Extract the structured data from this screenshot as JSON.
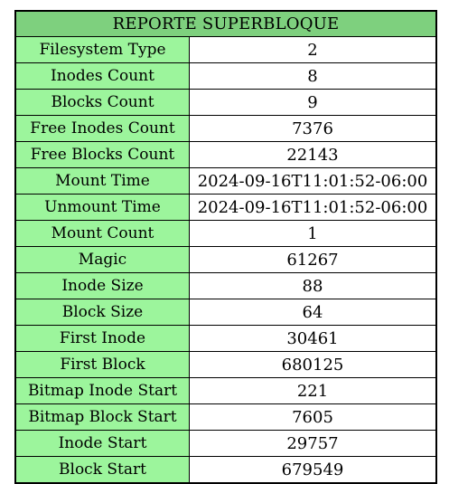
{
  "report": {
    "title": "REPORTE SUPERBLOQUE",
    "rows": [
      {
        "label": "Filesystem Type",
        "value": "2"
      },
      {
        "label": "Inodes Count",
        "value": "8"
      },
      {
        "label": "Blocks Count",
        "value": "9"
      },
      {
        "label": "Free Inodes Count",
        "value": "7376"
      },
      {
        "label": "Free Blocks Count",
        "value": "22143"
      },
      {
        "label": "Mount Time",
        "value": "2024-09-16T11:01:52-06:00"
      },
      {
        "label": "Unmount Time",
        "value": "2024-09-16T11:01:52-06:00"
      },
      {
        "label": "Mount Count",
        "value": "1"
      },
      {
        "label": "Magic",
        "value": "61267"
      },
      {
        "label": "Inode Size",
        "value": "88"
      },
      {
        "label": "Block Size",
        "value": "64"
      },
      {
        "label": "First Inode",
        "value": "30461"
      },
      {
        "label": "First Block",
        "value": "680125"
      },
      {
        "label": "Bitmap Inode Start",
        "value": "221"
      },
      {
        "label": "Bitmap Block Start",
        "value": "7605"
      },
      {
        "label": "Inode Start",
        "value": "29757"
      },
      {
        "label": "Block Start",
        "value": "679549"
      }
    ],
    "colors": {
      "header_bg": "#7ed07e",
      "label_bg": "#9cf59c",
      "value_bg": "#ffffff",
      "border": "#000000"
    }
  }
}
